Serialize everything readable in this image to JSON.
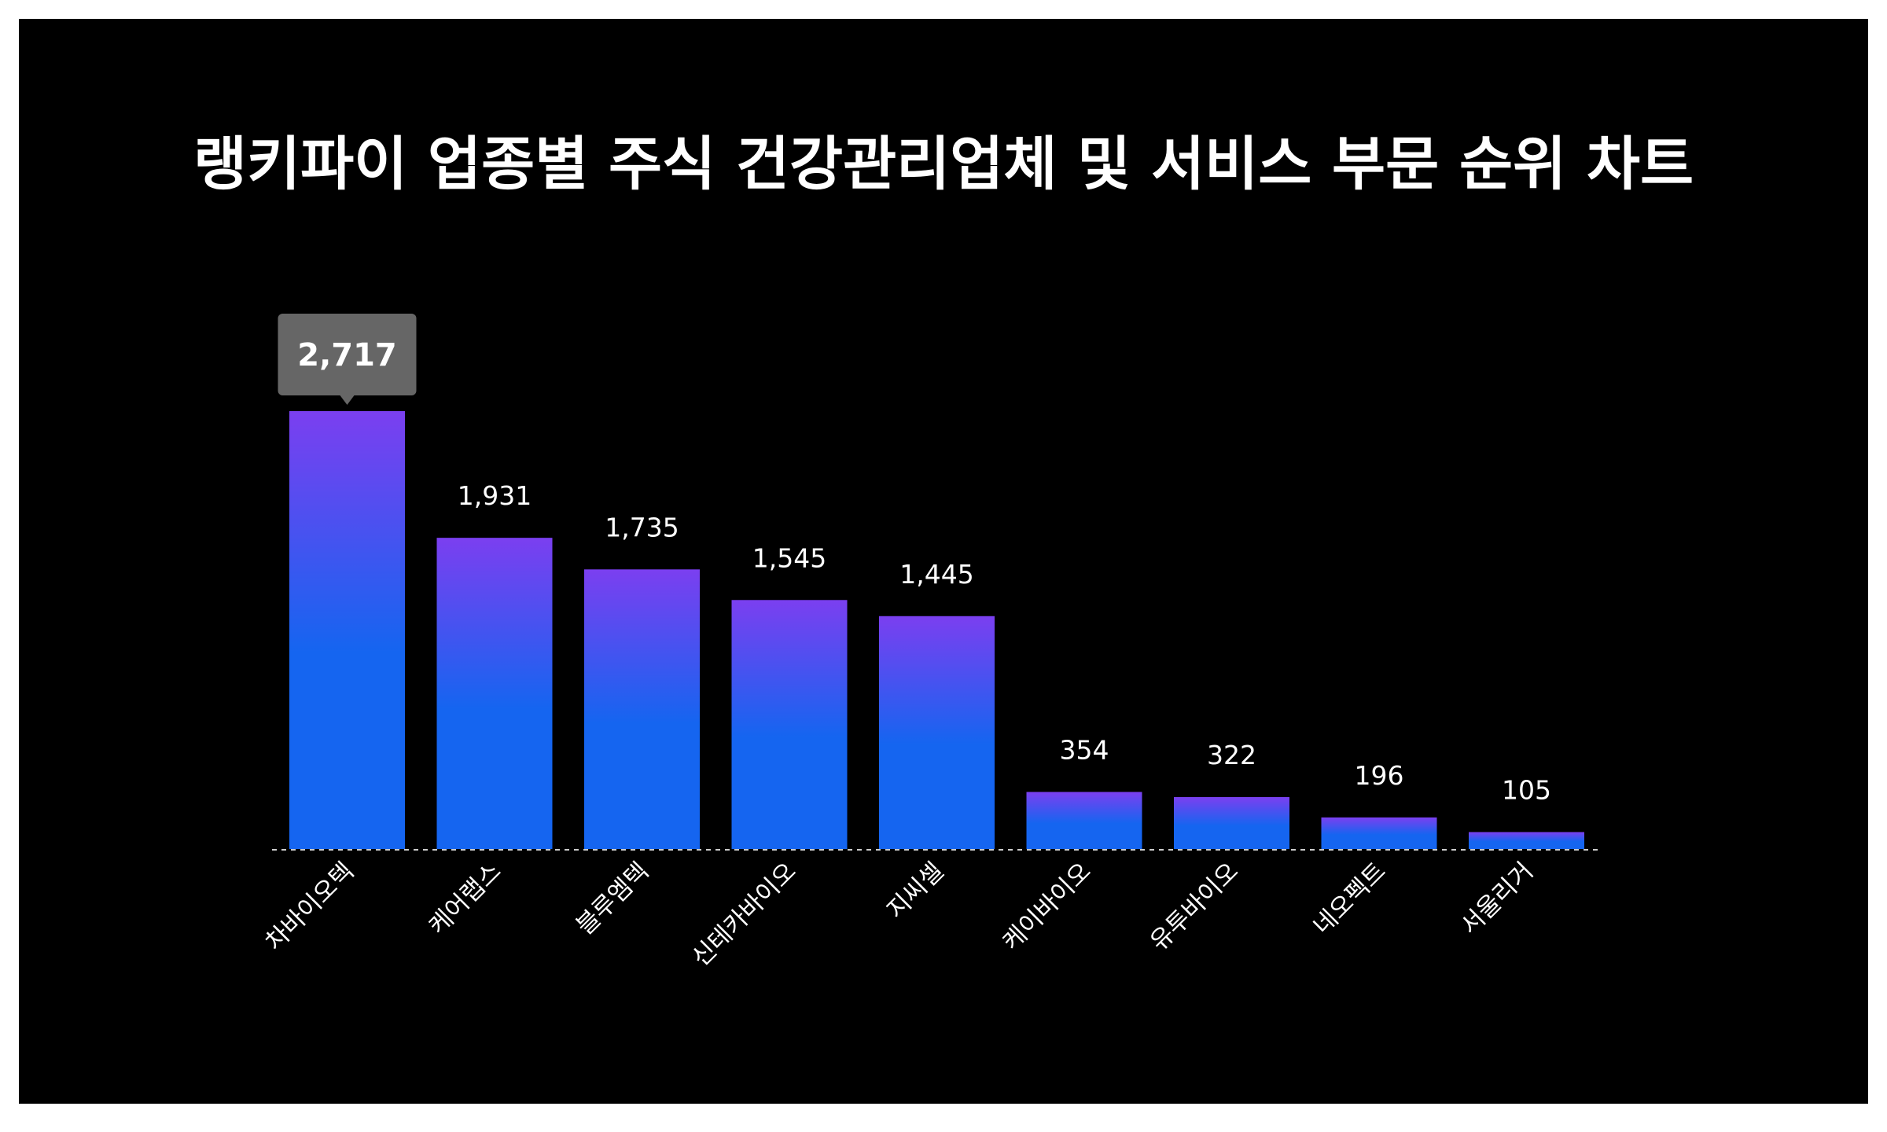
{
  "title": "랭키파이 업종별 주식 건강관리업체 및 서비스 부문 순위 차트",
  "colors": {
    "background": "#000000",
    "bar_top": "#7b3ff0",
    "bar_bottom": "#1565f0",
    "tooltip_bg": "#666666",
    "baseline": "#cccccc",
    "text": "#ffffff"
  },
  "chart_data": {
    "type": "bar",
    "categories": [
      "차바이오텍",
      "케어랩스",
      "블루엠텍",
      "신테카바이오",
      "지씨셀",
      "케이바이오",
      "유투바이오",
      "네오펙트",
      "서울리거"
    ],
    "values": [
      2717,
      1931,
      1735,
      1545,
      1445,
      354,
      322,
      196,
      105
    ],
    "value_labels": [
      "2,717",
      "1,931",
      "1,735",
      "1,545",
      "1,445",
      "354",
      "322",
      "196",
      "105"
    ],
    "highlighted_index": 0,
    "title": "랭키파이 업종별 주식 건강관리업체 및 서비스 부문 순위 차트",
    "xlabel": "",
    "ylabel": "",
    "ylim": [
      0,
      2717
    ],
    "grid": false,
    "legend": "none",
    "baseline": "dashed"
  }
}
